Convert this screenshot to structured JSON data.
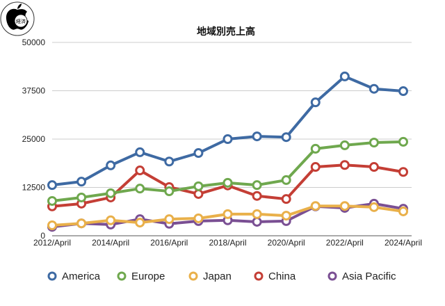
{
  "logo": {
    "text": "経済"
  },
  "chart_data": {
    "type": "line",
    "title": "地域別売上高",
    "xlabel": "",
    "ylabel": "",
    "x": [
      "2012/April",
      "2013/April",
      "2014/April",
      "2015/April",
      "2016/April",
      "2017/April",
      "2018/April",
      "2019/April",
      "2020/April",
      "2021/April",
      "2022/April",
      "2023/April",
      "2024/April"
    ],
    "x_tick_labels": [
      "2012/April",
      "2014/April",
      "2016/April",
      "2018/April",
      "2020/April",
      "2022/April",
      "2024/April"
    ],
    "y_tick_labels": [
      "0",
      "12500",
      "25000",
      "37500",
      "50000"
    ],
    "ylim": [
      0,
      50000
    ],
    "grid": true,
    "legend_position": "bottom",
    "series": [
      {
        "name": "America",
        "color": "#3e6aa3",
        "values": [
          13100,
          14000,
          18200,
          21600,
          19200,
          21400,
          25000,
          25700,
          25500,
          34500,
          41200,
          38000,
          37400
        ]
      },
      {
        "name": "Europe",
        "color": "#6fa84e",
        "values": [
          9000,
          9900,
          11000,
          12200,
          11500,
          12800,
          13700,
          13100,
          14400,
          22500,
          23400,
          24100,
          24300
        ]
      },
      {
        "name": "Japan",
        "color": "#e9b04a",
        "values": [
          2700,
          3200,
          4000,
          3400,
          4300,
          4500,
          5600,
          5600,
          5200,
          7700,
          7700,
          7400,
          6300
        ]
      },
      {
        "name": "China",
        "color": "#c43e35",
        "values": [
          7600,
          8300,
          9900,
          16900,
          12600,
          10800,
          13000,
          10300,
          9500,
          17800,
          18300,
          17800,
          16500
        ]
      },
      {
        "name": "Asia Pacific",
        "color": "#7a4f93",
        "values": [
          2300,
          3200,
          2900,
          4300,
          3100,
          3800,
          4000,
          3600,
          3800,
          7600,
          7200,
          8300,
          7000
        ]
      }
    ]
  }
}
